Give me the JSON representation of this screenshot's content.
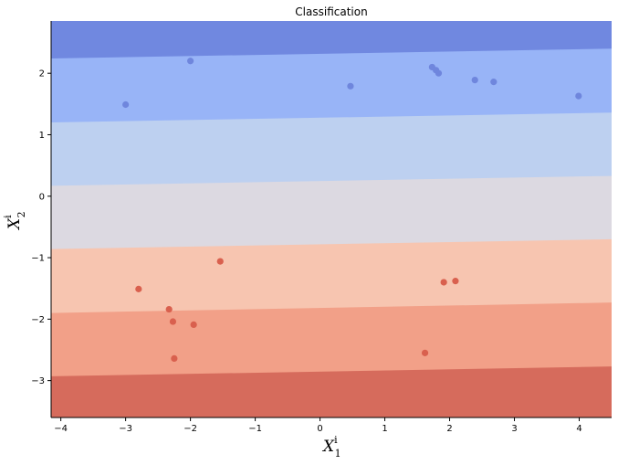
{
  "chart_data": {
    "type": "scatter",
    "title": "Classification",
    "xlabel": {
      "main": "X",
      "sup": "i",
      "sub": "1"
    },
    "ylabel": {
      "main": "X",
      "sup": "i",
      "sub": "2"
    },
    "xlim": [
      -4.15,
      4.5
    ],
    "ylim": [
      -3.6,
      2.85
    ],
    "xticks": [
      -4,
      -3,
      -2,
      -1,
      0,
      1,
      2,
      3,
      4
    ],
    "yticks": [
      -3,
      -2,
      -1,
      0,
      1,
      2
    ],
    "grid": false,
    "background_regions": [
      {
        "color": "#d66b5c",
        "left_y": -3.6,
        "right_y": -3.6
      },
      {
        "color": "#f2a088",
        "left_y": -2.93,
        "right_y": -2.77
      },
      {
        "color": "#f7c5b0",
        "left_y": -1.9,
        "right_y": -1.73
      },
      {
        "color": "#dcd9e1",
        "left_y": -0.86,
        "right_y": -0.7
      },
      {
        "color": "#bdd0f0",
        "left_y": 0.17,
        "right_y": 0.33
      },
      {
        "color": "#98b4f7",
        "left_y": 1.2,
        "right_y": 1.36
      },
      {
        "color": "#7088e0",
        "left_y": 2.24,
        "right_y": 2.4
      }
    ],
    "series": [
      {
        "color": "#6f86dd",
        "x": [
          -3.0,
          -2.0,
          0.47,
          1.73,
          1.79,
          1.83,
          2.39,
          2.68,
          3.99
        ],
        "y": [
          1.49,
          2.2,
          1.79,
          2.1,
          2.05,
          2.0,
          1.89,
          1.86,
          1.63
        ]
      },
      {
        "color": "#d9604e",
        "x": [
          -2.8,
          -2.33,
          -2.27,
          -2.25,
          -1.95,
          -1.54,
          1.62,
          1.91,
          2.09
        ],
        "y": [
          -1.51,
          -1.84,
          -2.04,
          -2.64,
          -2.09,
          -1.06,
          -2.55,
          -1.4,
          -1.38
        ]
      }
    ]
  }
}
